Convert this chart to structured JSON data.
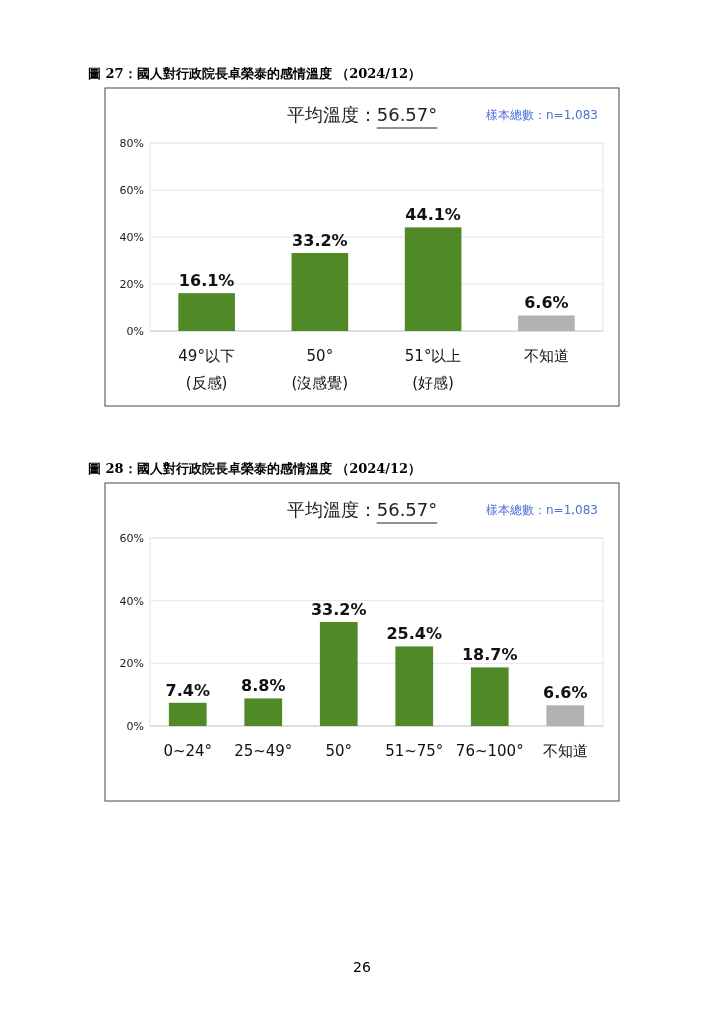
{
  "chart_data": [
    {
      "type": "bar",
      "title": "圖 27：國人對行政院長卓榮泰的感情溫度 （2024/12）",
      "subtitle": "平均溫度：56.57°",
      "annotations": [
        "樣本總數：n=1,083"
      ],
      "categories": [
        "49°以下\n(反感)",
        "50°\n(沒感覺)",
        "51°以上\n(好感)",
        "不知道"
      ],
      "values": [
        16.1,
        33.2,
        44.1,
        6.6
      ],
      "colors": [
        "#4f8a26",
        "#4f8a26",
        "#4f8a26",
        "#b2b2b2"
      ],
      "ylim": [
        0,
        80
      ],
      "yticks": [
        {
          "value": 0,
          "label": "0%"
        },
        {
          "value": 20,
          "label": "20%"
        },
        {
          "value": 40,
          "label": "40%"
        },
        {
          "value": 60,
          "label": "60%"
        },
        {
          "value": 80,
          "label": "80%"
        }
      ],
      "grid": "y",
      "value_labels": [
        "16.1%",
        "33.2%",
        "44.1%",
        "6.6%"
      ]
    },
    {
      "type": "bar",
      "title": "圖 28：國人對行政院長卓榮泰的感情溫度 （2024/12）",
      "subtitle": "平均溫度：56.57°",
      "annotations": [
        "樣本總數：n=1,083",
        "26"
      ],
      "categories": [
        "0~24°",
        "25~49°",
        "50°",
        "51~75°",
        "76~100°",
        "不知道"
      ],
      "values": [
        7.4,
        8.8,
        33.2,
        25.4,
        18.7,
        6.6
      ],
      "colors": [
        "#4f8a26",
        "#4f8a26",
        "#4f8a26",
        "#4f8a26",
        "#4f8a26",
        "#b2b2b2"
      ],
      "ylim": [
        0,
        60
      ],
      "yticks": [
        {
          "value": 0,
          "label": "0%"
        },
        {
          "value": 20,
          "label": "20%"
        },
        {
          "value": 40,
          "label": "40%"
        },
        {
          "value": 60,
          "label": "60%"
        }
      ],
      "grid": "y",
      "value_labels": [
        "7.4%",
        "8.8%",
        "33.2%",
        "25.4%",
        "18.7%",
        "6.6%"
      ]
    }
  ]
}
